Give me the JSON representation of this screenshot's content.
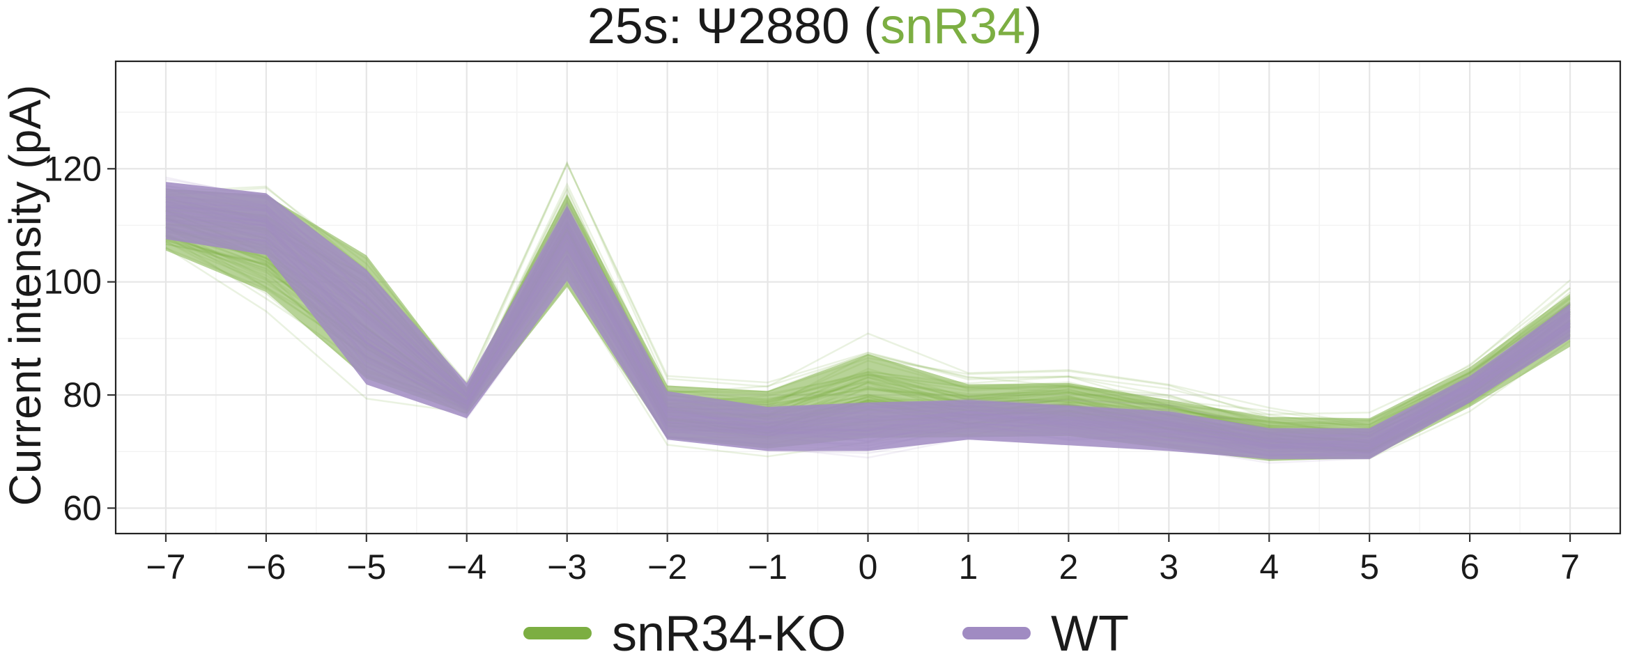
{
  "chart_data": {
    "type": "line",
    "title_parts": [
      {
        "text": "25s: Ψ2880 (",
        "color": "#1a1a1a"
      },
      {
        "text": "snR34",
        "color": "#7cae42"
      },
      {
        "text": ")",
        "color": "#1a1a1a"
      }
    ],
    "ylabel": "Current intensity (pA)",
    "xlabel": "",
    "x": [
      -7,
      -6,
      -5,
      -4,
      -3,
      -2,
      -1,
      0,
      1,
      2,
      3,
      4,
      5,
      6,
      7
    ],
    "x_tick_labels": [
      "−7",
      "−6",
      "−5",
      "−4",
      "−3",
      "−2",
      "−1",
      "0",
      "1",
      "2",
      "3",
      "4",
      "5",
      "6",
      "7"
    ],
    "y_ticks": [
      60,
      80,
      100,
      120
    ],
    "y_tick_labels": [
      "60",
      "80",
      "100",
      "120"
    ],
    "xlim": [
      -7.5,
      7.5
    ],
    "ylim": [
      55.5,
      139
    ],
    "grid": true,
    "legend_position": "bottom",
    "series": [
      {
        "name": "snR34-KO",
        "color": "#7cae42",
        "center": [
          111,
          106,
          93,
          79,
          110,
          77,
          76,
          81,
          78,
          79,
          76,
          73,
          72,
          81,
          94
        ],
        "low": [
          104,
          96,
          80,
          76,
          96,
          71,
          69,
          70,
          71,
          71,
          69,
          67,
          68,
          77,
          87
        ],
        "high": [
          118,
          118,
          108,
          82,
          117,
          83,
          82,
          89,
          83,
          83,
          80,
          77,
          77,
          86,
          99
        ]
      },
      {
        "name": "WT",
        "color": "#a08bc2",
        "center": [
          113,
          111,
          92,
          79,
          108,
          76,
          74,
          74,
          76,
          75,
          74,
          71,
          71,
          81,
          93
        ],
        "low": [
          106,
          103,
          79,
          75,
          98,
          71,
          69,
          69,
          71,
          70,
          69,
          68,
          68,
          78,
          89
        ],
        "high": [
          119,
          117,
          105,
          83,
          115,
          82,
          79,
          80,
          80,
          79,
          78,
          75,
          75,
          84,
          97
        ]
      }
    ]
  }
}
